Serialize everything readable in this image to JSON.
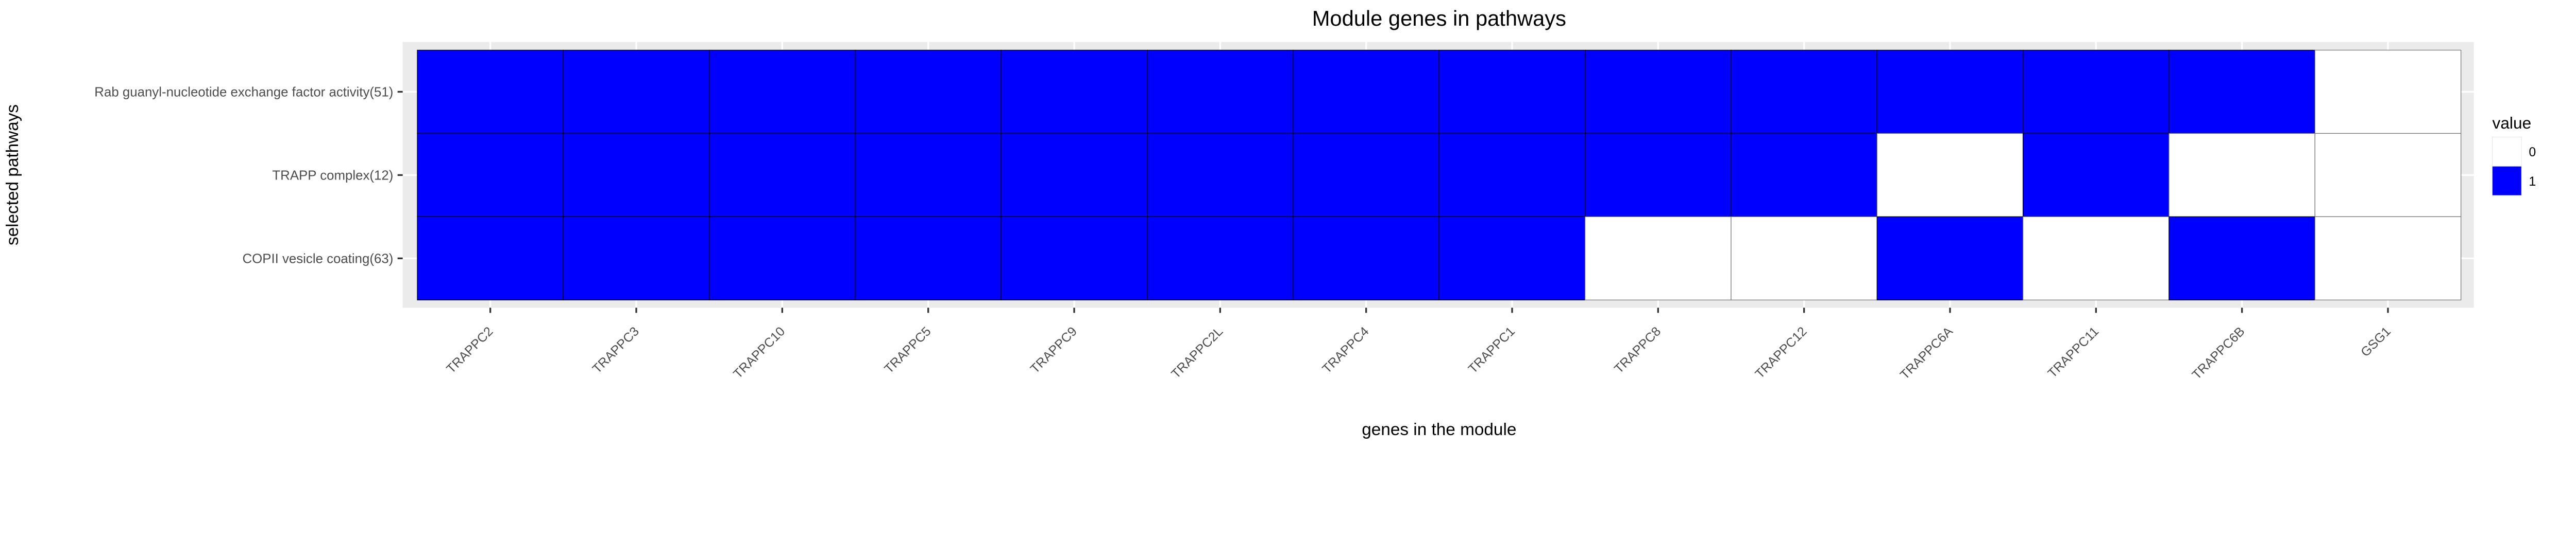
{
  "chart_data": {
    "type": "heatmap",
    "title": "Module genes in pathways",
    "xlabel": "genes in the module",
    "ylabel": "selected pathways",
    "x": [
      "TRAPPC2",
      "TRAPPC3",
      "TRAPPC10",
      "TRAPPC5",
      "TRAPPC9",
      "TRAPPC2L",
      "TRAPPC4",
      "TRAPPC1",
      "TRAPPC8",
      "TRAPPC12",
      "TRAPPC6A",
      "TRAPPC11",
      "TRAPPC6B",
      "GSG1"
    ],
    "y": [
      "Rab guanyl-nucleotide exchange factor activity(51)",
      "TRAPP complex(12)",
      "COPII vesicle coating(63)"
    ],
    "values": [
      [
        1,
        1,
        1,
        1,
        1,
        1,
        1,
        1,
        1,
        1,
        1,
        1,
        1,
        0
      ],
      [
        1,
        1,
        1,
        1,
        1,
        1,
        1,
        1,
        1,
        1,
        0,
        1,
        0,
        0
      ],
      [
        1,
        1,
        1,
        1,
        1,
        1,
        1,
        1,
        0,
        0,
        1,
        0,
        1,
        0
      ]
    ],
    "legend": {
      "title": "value",
      "entries": [
        {
          "label": "0",
          "color": "#FFFFFF"
        },
        {
          "label": "1",
          "color": "#0000FF"
        }
      ],
      "placement": "right"
    },
    "colors": {
      "panel_background": "#EBEBEB",
      "grid": "#FFFFFF",
      "tile_border": "#000000"
    },
    "grid": true
  }
}
